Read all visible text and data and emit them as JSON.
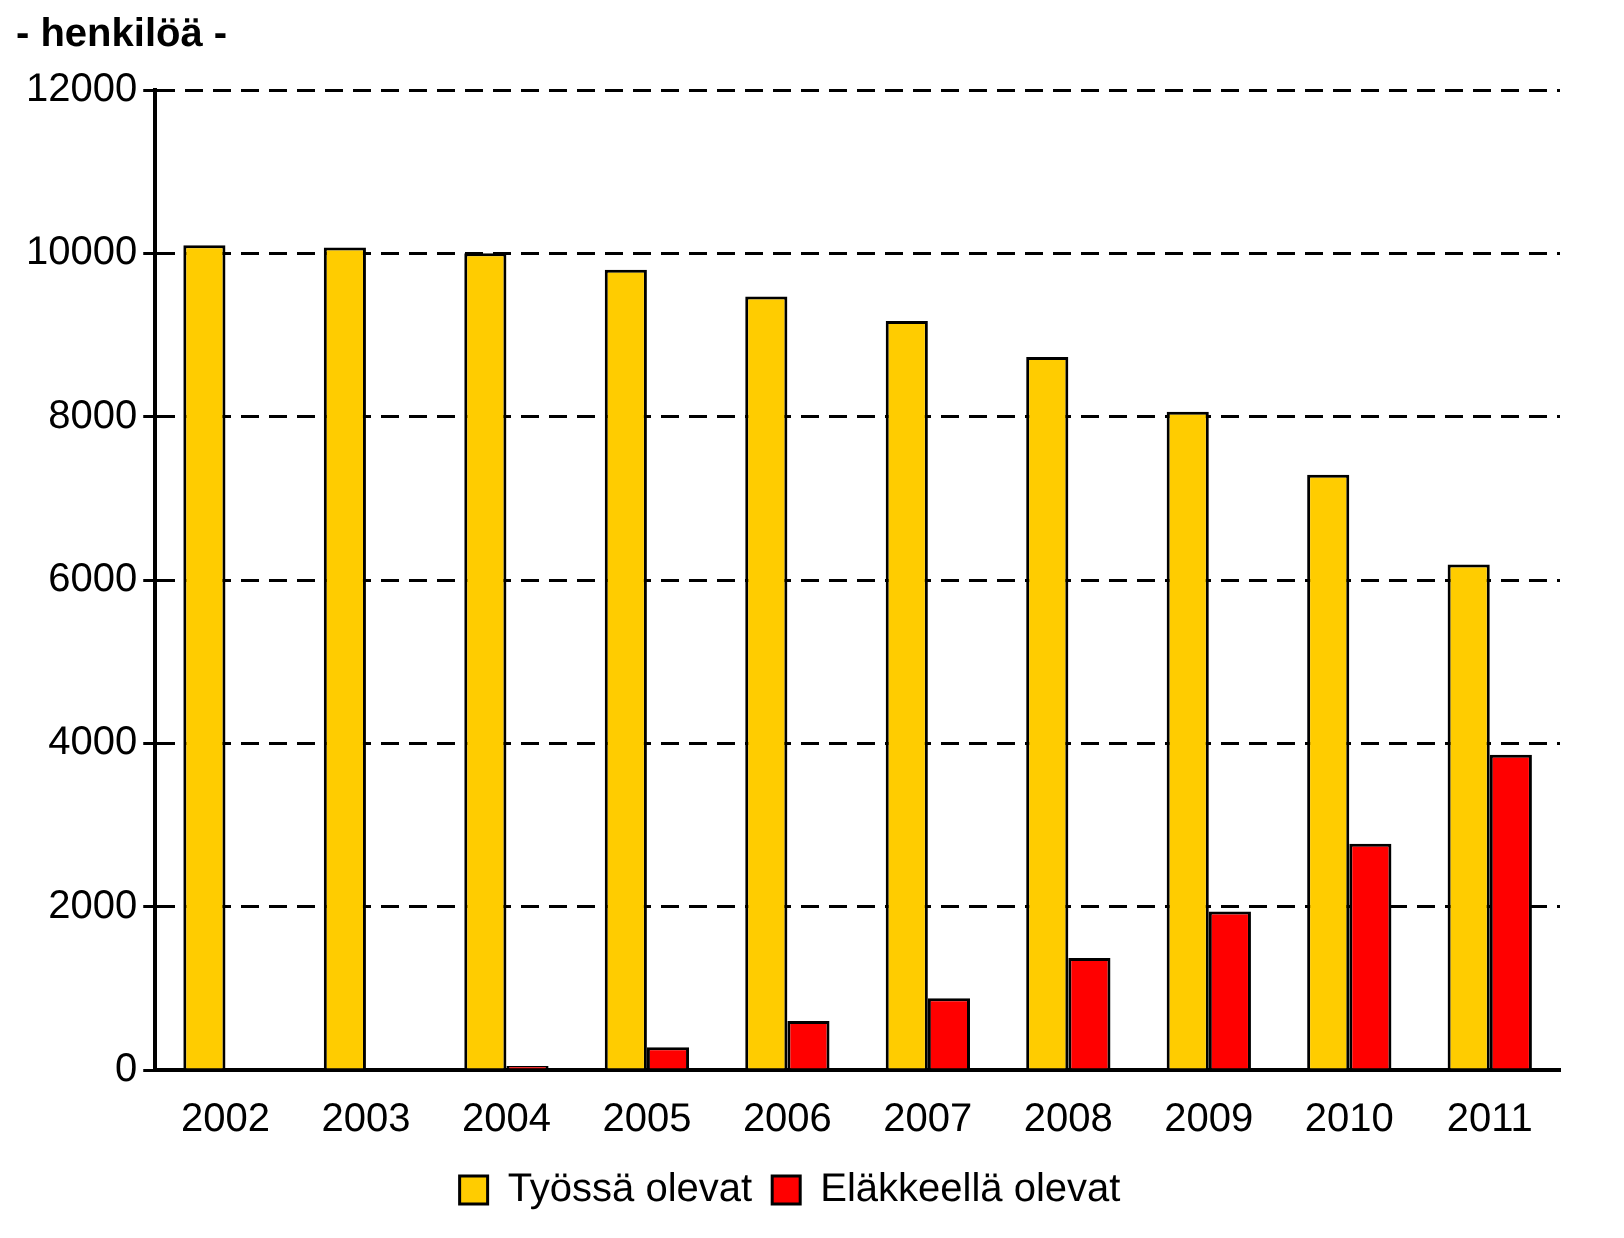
{
  "chart_data": {
    "type": "bar",
    "title": "- henkilöä -",
    "categories": [
      "2002",
      "2003",
      "2004",
      "2005",
      "2006",
      "2007",
      "2008",
      "2009",
      "2010",
      "2011"
    ],
    "series": [
      {
        "name": "Työssä olevat",
        "color": "#ffcc00",
        "values": [
          10100,
          10070,
          10000,
          9800,
          9470,
          9170,
          8730,
          8060,
          7290,
          6190
        ]
      },
      {
        "name": "Eläkkeellä olevat",
        "color": "#ff0000",
        "values": [
          0,
          null,
          50,
          280,
          600,
          880,
          1370,
          1940,
          2770,
          3860
        ]
      }
    ],
    "ylim": [
      0,
      12000
    ],
    "yticks": [
      0,
      2000,
      4000,
      6000,
      8000,
      10000,
      12000
    ],
    "grid": "y",
    "legend": "bottom"
  }
}
